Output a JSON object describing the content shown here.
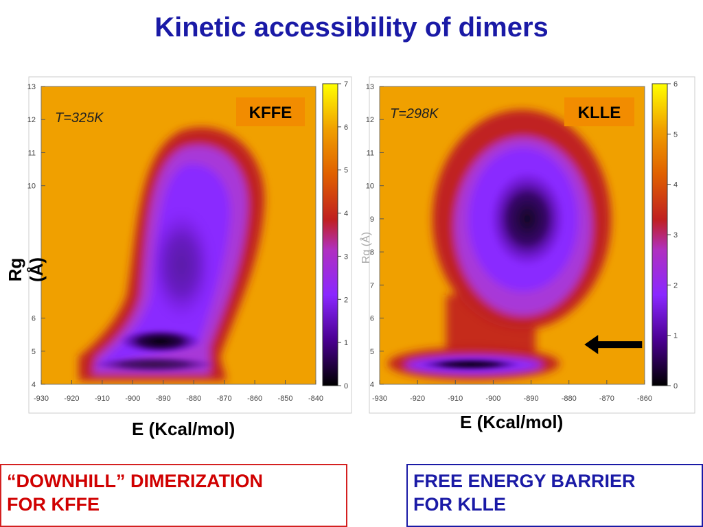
{
  "slide": {
    "title": "Kinetic accessibility of dimers",
    "left_caption": "“DOWNHILL” DIMERIZATION\nFOR KFFE",
    "right_caption": "FREE ENERGY BARRIER\nFOR KLLE"
  },
  "colors": {
    "title": "#1a1aa6",
    "left_caption": "#d00000",
    "right_caption": "#1a1aa6",
    "label_box": "#f28c00",
    "background_map": "#f0a000"
  },
  "chart_data": [
    {
      "type": "heatmap",
      "label": "KFFE",
      "annotation": "T=325K",
      "xlabel": "E (Kcal/mol)",
      "ylabel": "Rg (Å)",
      "xlim": [
        -930,
        -840
      ],
      "ylim": [
        4,
        13
      ],
      "xticks": [
        -930,
        -920,
        -910,
        -900,
        -890,
        -880,
        -870,
        -860,
        -850,
        -840
      ],
      "yticks": [
        4,
        5,
        6,
        10,
        11,
        12,
        13
      ],
      "colorbar": {
        "min": 0,
        "max": 7,
        "ticks": [
          0,
          1,
          2,
          3,
          4,
          5,
          6,
          7
        ]
      },
      "basins": [
        {
          "x": -891,
          "y": 5.3,
          "level": 0.3
        },
        {
          "x": -893,
          "y": 4.6,
          "level": 0.8
        },
        {
          "x": -884,
          "y": 7.6,
          "level": 1.4
        }
      ]
    },
    {
      "type": "heatmap",
      "label": "KLLE",
      "annotation": "T=298K",
      "xlabel": "E (Kcal/mol)",
      "ylabel": "Rg (Å)",
      "xlim": [
        -930,
        -860
      ],
      "ylim": [
        4,
        13
      ],
      "xticks": [
        -930,
        -920,
        -910,
        -900,
        -890,
        -880,
        -870,
        -860
      ],
      "yticks": [
        4,
        5,
        6,
        7,
        8,
        9,
        10,
        11,
        12,
        13
      ],
      "colorbar": {
        "min": 0,
        "max": 6,
        "ticks": [
          0,
          1,
          2,
          3,
          4,
          5,
          6
        ]
      },
      "basins": [
        {
          "x": -891,
          "y": 9.0,
          "level": 0.5
        },
        {
          "x": -906,
          "y": 4.6,
          "level": 0.4
        }
      ],
      "arrow": {
        "x": -877,
        "y": 5.2,
        "points": "left"
      }
    }
  ]
}
